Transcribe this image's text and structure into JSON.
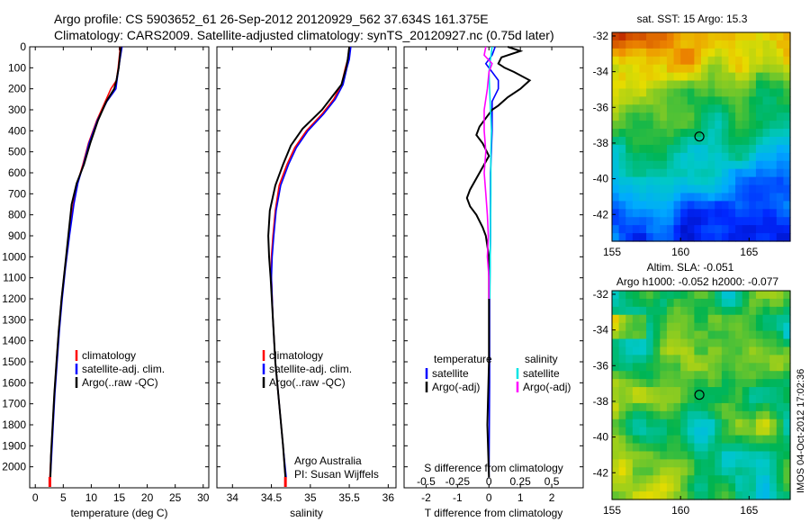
{
  "header": {
    "line1": "Argo profile: CS 5903652_61 26-Sep-2012 20120929_562 37.634S 161.375E",
    "line2": "Climatology: CARS2009. Satellite-adjusted climatology: synTS_20120927.nc (0.75d later)"
  },
  "side_stamp": "IMOS 04-Oct-2012 17:02:36",
  "chart_data": [
    {
      "id": "temperature",
      "type": "line",
      "xlabel": "temperature (deg C)",
      "ylabel": "",
      "xlim": [
        -1,
        31
      ],
      "ylim": [
        2100,
        0
      ],
      "xticks": [
        0,
        5,
        10,
        15,
        20,
        25,
        30
      ],
      "yticks": [
        0,
        100,
        200,
        300,
        400,
        500,
        600,
        700,
        800,
        900,
        1000,
        1100,
        1200,
        1300,
        1400,
        1500,
        1600,
        1700,
        1800,
        1900,
        2000
      ],
      "legend": [
        "climatology",
        "satellite-adj. clim.",
        "Argo(..raw -QC)"
      ],
      "series": [
        {
          "name": "climatology",
          "color": "#ff0000",
          "points": [
            [
              15.2,
              0
            ],
            [
              15,
              50
            ],
            [
              14.8,
              100
            ],
            [
              14.5,
              160
            ],
            [
              13.5,
              200
            ],
            [
              12.5,
              260
            ],
            [
              11,
              350
            ],
            [
              9.5,
              460
            ],
            [
              8.5,
              560
            ],
            [
              7.5,
              650
            ],
            [
              6.8,
              750
            ],
            [
              6,
              900
            ],
            [
              5.3,
              1050
            ],
            [
              4.7,
              1200
            ],
            [
              4.2,
              1350
            ],
            [
              3.8,
              1500
            ],
            [
              3.4,
              1650
            ],
            [
              3.1,
              1800
            ],
            [
              2.8,
              1950
            ],
            [
              2.6,
              2050
            ]
          ]
        },
        {
          "name": "satellite-adj. clim.",
          "color": "#0000ff",
          "points": [
            [
              15.5,
              0
            ],
            [
              15.2,
              50
            ],
            [
              14.9,
              100
            ],
            [
              14.6,
              160
            ],
            [
              14.4,
              200
            ],
            [
              12.8,
              260
            ],
            [
              11.1,
              350
            ],
            [
              9.6,
              460
            ],
            [
              8.6,
              560
            ],
            [
              7.6,
              650
            ],
            [
              6.9,
              750
            ],
            [
              6.1,
              900
            ],
            [
              5.4,
              1050
            ],
            [
              4.8,
              1200
            ],
            [
              4.3,
              1350
            ],
            [
              3.9,
              1500
            ],
            [
              3.5,
              1650
            ],
            [
              3.2,
              1800
            ],
            [
              2.9,
              1950
            ],
            [
              2.7,
              2050
            ]
          ]
        },
        {
          "name": "Argo(..raw -QC)",
          "color": "#000000",
          "points": [
            [
              15.3,
              0
            ],
            [
              15.1,
              50
            ],
            [
              14.9,
              100
            ],
            [
              14.5,
              160
            ],
            [
              14.1,
              200
            ],
            [
              12.7,
              260
            ],
            [
              11.2,
              350
            ],
            [
              9.8,
              460
            ],
            [
              8.7,
              560
            ],
            [
              7.4,
              650
            ],
            [
              6.5,
              750
            ],
            [
              5.9,
              900
            ],
            [
              5.3,
              1050
            ],
            [
              4.7,
              1200
            ],
            [
              4.2,
              1350
            ],
            [
              3.8,
              1500
            ],
            [
              3.4,
              1650
            ],
            [
              3.1,
              1800
            ],
            [
              2.8,
              1950
            ],
            [
              2.7,
              2050
            ]
          ]
        }
      ]
    },
    {
      "id": "salinity",
      "type": "line",
      "xlabel": "salinity",
      "ylabel": "",
      "xlim": [
        33.8,
        36.1
      ],
      "ylim": [
        2100,
        0
      ],
      "xticks": [
        34,
        34.5,
        35,
        35.5,
        36
      ],
      "xticklabels": [
        "34",
        "34.5",
        "35",
        "35.5",
        "36"
      ],
      "legend": [
        "climatology",
        "satellite-adj. clim.",
        "Argo(..raw -QC)"
      ],
      "annotation": [
        "Argo Australia",
        "PI: Susan Wijffels"
      ],
      "series": [
        {
          "name": "climatology",
          "color": "#ff0000",
          "points": [
            [
              35.5,
              0
            ],
            [
              35.48,
              60
            ],
            [
              35.45,
              100
            ],
            [
              35.4,
              180
            ],
            [
              35.3,
              250
            ],
            [
              35.15,
              320
            ],
            [
              34.95,
              400
            ],
            [
              34.8,
              480
            ],
            [
              34.7,
              560
            ],
            [
              34.6,
              660
            ],
            [
              34.55,
              780
            ],
            [
              34.52,
              900
            ],
            [
              34.5,
              1000
            ],
            [
              34.5,
              1100
            ],
            [
              34.52,
              1300
            ],
            [
              34.55,
              1500
            ],
            [
              34.6,
              1700
            ],
            [
              34.65,
              1900
            ],
            [
              34.68,
              2050
            ]
          ]
        },
        {
          "name": "satellite-adj. clim.",
          "color": "#0000ff",
          "points": [
            [
              35.52,
              0
            ],
            [
              35.5,
              60
            ],
            [
              35.47,
              100
            ],
            [
              35.42,
              180
            ],
            [
              35.32,
              250
            ],
            [
              35.17,
              320
            ],
            [
              34.97,
              400
            ],
            [
              34.82,
              480
            ],
            [
              34.72,
              560
            ],
            [
              34.62,
              660
            ],
            [
              34.56,
              780
            ],
            [
              34.53,
              900
            ],
            [
              34.51,
              1000
            ],
            [
              34.5,
              1100
            ],
            [
              34.52,
              1300
            ],
            [
              34.55,
              1500
            ],
            [
              34.6,
              1700
            ],
            [
              34.65,
              1900
            ],
            [
              34.69,
              2050
            ]
          ]
        },
        {
          "name": "Argo(..raw -QC)",
          "color": "#000000",
          "points": [
            [
              35.5,
              0
            ],
            [
              35.48,
              60
            ],
            [
              35.46,
              100
            ],
            [
              35.4,
              180
            ],
            [
              35.15,
              300
            ],
            [
              34.9,
              390
            ],
            [
              34.75,
              470
            ],
            [
              34.65,
              560
            ],
            [
              34.55,
              660
            ],
            [
              34.48,
              780
            ],
            [
              34.46,
              900
            ],
            [
              34.47,
              1000
            ],
            [
              34.49,
              1100
            ],
            [
              34.52,
              1300
            ],
            [
              34.55,
              1500
            ],
            [
              34.6,
              1700
            ],
            [
              34.65,
              1900
            ],
            [
              34.68,
              2050
            ]
          ]
        }
      ]
    },
    {
      "id": "difference",
      "type": "line",
      "xlabel": "T difference from climatology",
      "xlabel_top": "S difference from climatology",
      "xlim": [
        -2.7,
        3.0
      ],
      "ylim": [
        2100,
        0
      ],
      "xticks": [
        -2,
        -1,
        0,
        1,
        2
      ],
      "top_ticks": [
        -0.5,
        -0.25,
        0,
        0.25,
        0.5
      ],
      "legend_temperature": {
        "title": "temperature",
        "items": [
          "satellite",
          "Argo(-adj)"
        ]
      },
      "legend_salinity": {
        "title": "salinity",
        "items": [
          "satellite",
          "Argo(-adj)"
        ]
      },
      "series": [
        {
          "name": "temperature satellite",
          "color": "#0000ff",
          "points": [
            [
              0.2,
              0
            ],
            [
              0.1,
              40
            ],
            [
              -0.1,
              80
            ],
            [
              0.1,
              120
            ],
            [
              0.3,
              160
            ],
            [
              0.3,
              200
            ],
            [
              0.1,
              260
            ],
            [
              0.1,
              400
            ],
            [
              0.05,
              600
            ],
            [
              0.05,
              900
            ],
            [
              0.02,
              1200
            ],
            [
              0.02,
              1600
            ],
            [
              0,
              2050
            ]
          ]
        },
        {
          "name": "temperature Argo(-adj)",
          "color": "#000000",
          "points": [
            [
              0.6,
              0
            ],
            [
              1.0,
              20
            ],
            [
              0.4,
              50
            ],
            [
              0.3,
              80
            ],
            [
              0.5,
              100
            ],
            [
              0.8,
              120
            ],
            [
              1.3,
              160
            ],
            [
              1.0,
              200
            ],
            [
              0.6,
              240
            ],
            [
              0.3,
              280
            ],
            [
              0.1,
              300
            ],
            [
              -0.1,
              340
            ],
            [
              -0.3,
              380
            ],
            [
              -0.4,
              420
            ],
            [
              -0.2,
              460
            ],
            [
              0,
              520
            ],
            [
              -0.3,
              600
            ],
            [
              -0.6,
              680
            ],
            [
              -0.7,
              720
            ],
            [
              -0.6,
              760
            ],
            [
              -0.4,
              800
            ],
            [
              -0.2,
              860
            ],
            [
              -0.1,
              900
            ],
            [
              0,
              1000
            ],
            [
              0,
              1200
            ],
            [
              0,
              1500
            ],
            [
              -0.05,
              1800
            ],
            [
              0,
              2050
            ]
          ]
        },
        {
          "name": "salinity satellite",
          "color": "#00e5e5",
          "points": [
            [
              0.1,
              0
            ],
            [
              0.05,
              60
            ],
            [
              0,
              120
            ],
            [
              0.02,
              200
            ],
            [
              0.05,
              300
            ],
            [
              0.08,
              400
            ],
            [
              0.06,
              500
            ],
            [
              0.06,
              700
            ],
            [
              0.05,
              900
            ],
            [
              0.04,
              1000
            ],
            [
              0.03,
              1200
            ]
          ]
        },
        {
          "name": "salinity Argo(-adj)",
          "color": "#ff00ff",
          "points": [
            [
              -0.1,
              0
            ],
            [
              -0.15,
              40
            ],
            [
              0.1,
              80
            ],
            [
              0,
              120
            ],
            [
              -0.05,
              200
            ],
            [
              -0.15,
              300
            ],
            [
              -0.15,
              400
            ],
            [
              -0.1,
              500
            ],
            [
              -0.15,
              600
            ],
            [
              -0.1,
              700
            ],
            [
              -0.05,
              800
            ],
            [
              -0.02,
              900
            ],
            [
              -0.05,
              1000
            ],
            [
              0,
              1100
            ],
            [
              0,
              1200
            ]
          ]
        }
      ]
    },
    {
      "id": "sst_map",
      "type": "heatmap",
      "title": "sat. SST: 15 Argo: 15.3",
      "xlim": [
        155,
        168
      ],
      "ylim": [
        -43.5,
        -31.8
      ],
      "xticks": [
        155,
        160,
        165
      ],
      "yticks": [
        -32,
        -34,
        -36,
        -38,
        -40,
        -42
      ],
      "marker": [
        161.375,
        -37.634
      ]
    },
    {
      "id": "sla_map",
      "type": "heatmap",
      "title": "Altim. SLA: -0.051",
      "subtitle": "Argo h1000: -0.052 h2000: -0.077",
      "xlim": [
        155,
        168
      ],
      "ylim": [
        -43.5,
        -31.8
      ],
      "xticks": [
        155,
        160,
        165
      ],
      "yticks": [
        -32,
        -34,
        -36,
        -38,
        -40,
        -42
      ],
      "marker": [
        161.375,
        -37.634
      ]
    }
  ]
}
